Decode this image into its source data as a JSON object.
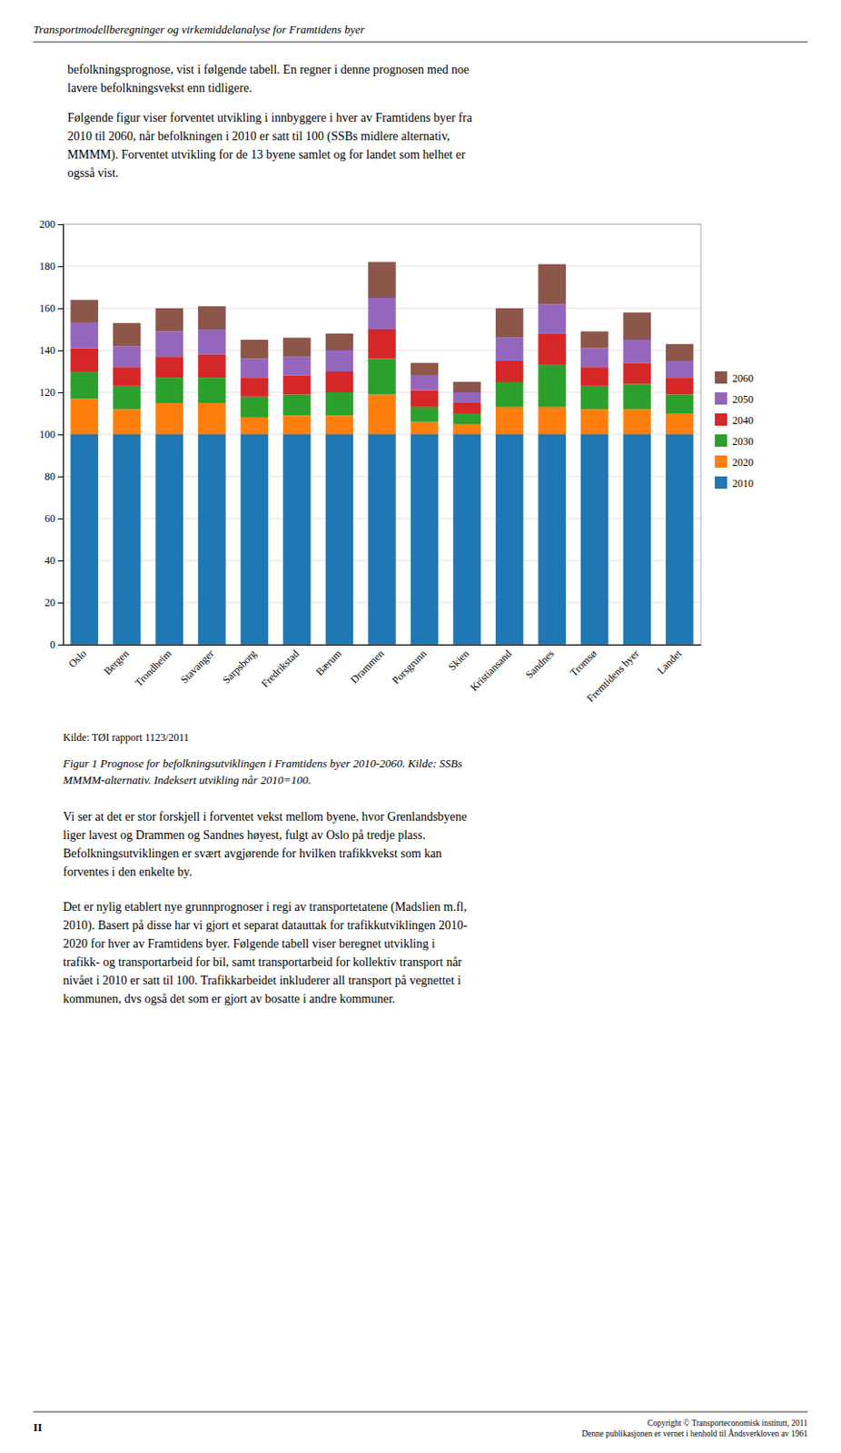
{
  "header": "Transportmodellberegninger og virkemiddelanalyse for Framtidens byer",
  "paragraphs": [
    [
      "befolkningsprognose, vist i følgende tabell. En regner i denne prognosen med noe",
      "lavere befolkningsvekst enn tidligere."
    ],
    [
      "Følgende figur viser forventet utvikling i innbyggere i hver av Framtidens byer fra",
      "2010 til 2060, når befolkningen i 2010 er satt til 100 (SSBs midlere alternativ,",
      "MMMM). Forventet utvikling for de 13 byene samlet og for landet som helhet er",
      "ogsså vist."
    ]
  ],
  "chart_data": {
    "type": "bar",
    "stacked": true,
    "categories": [
      "Oslo",
      "Bergen",
      "Trondheim",
      "Stavanger",
      "Sarpsborg",
      "Fredrikstad",
      "Bærum",
      "Drammen",
      "Porsgrunn",
      "Skien",
      "Kristiansand",
      "Sandnes",
      "Tromsø",
      "Fremtidens byer",
      "Landet"
    ],
    "series": [
      {
        "name": "2010",
        "values": [
          100,
          100,
          100,
          100,
          100,
          100,
          100,
          100,
          100,
          100,
          100,
          100,
          100,
          100,
          100
        ]
      },
      {
        "name": "2020",
        "values": [
          17,
          12,
          15,
          15,
          8,
          9,
          9,
          19,
          6,
          5,
          13,
          13,
          12,
          12,
          10
        ]
      },
      {
        "name": "2030",
        "values": [
          13,
          11,
          12,
          12,
          10,
          10,
          11,
          17,
          7,
          5,
          12,
          20,
          11,
          12,
          9
        ]
      },
      {
        "name": "2040",
        "values": [
          11,
          9,
          10,
          11,
          9,
          9,
          10,
          14,
          8,
          5,
          10,
          15,
          9,
          10,
          8
        ]
      },
      {
        "name": "2050",
        "values": [
          12,
          10,
          12,
          12,
          9,
          9,
          10,
          15,
          7,
          5,
          11,
          14,
          9,
          11,
          8
        ]
      },
      {
        "name": "2060",
        "values": [
          11,
          11,
          11,
          11,
          9,
          9,
          8,
          17,
          6,
          5,
          14,
          19,
          8,
          13,
          8
        ]
      }
    ],
    "ylim": [
      0,
      200
    ],
    "yticks": [
      0,
      20,
      40,
      60,
      80,
      100,
      120,
      140,
      160,
      180,
      200
    ],
    "grid": true,
    "legend": "right"
  },
  "source": "Kilde: TØI rapport 1123/2011",
  "caption": [
    "Figur 1 Prognose for befolkningsutviklingen i Framtidens byer 2010-2060. Kilde: SSBs",
    "MMMM-alternativ. Indeksert utvikling når 2010=100."
  ],
  "body": [
    [
      "Vi ser at det er stor forskjell i forventet vekst mellom byene, hvor Grenlandsbyene",
      "liger lavest og Drammen og Sandnes høyest, fulgt av Oslo på tredje plass.",
      "Befolkningsutviklingen er svært avgjørende for hvilken trafikkvekst som kan",
      "forventes i den enkelte by."
    ],
    [
      "Det er nylig etablert nye grunnprognoser i regi av transportetatene (Madslien m.fl,",
      "2010). Basert på disse har vi gjort et separat datauttak for trafikkutviklingen 2010-",
      "2020 for hver av Framtidens byer. Følgende tabell viser beregnet utvikling i",
      "trafikk- og transportarbeid for bil, samt transportarbeid for kollektiv transport når",
      "nivået i 2010 er satt til 100. Trafikkarbeidet inkluderer all transport på vegnettet i",
      "kommunen, dvs også det som er gjort av bosatte i andre kommuner."
    ]
  ],
  "footer": {
    "left": "II",
    "right": [
      "Copyright © Transporteconomisk institutt, 2011",
      "Denne publikasjonen er vernet i henhold til Åndsverkloven av 1961"
    ]
  }
}
